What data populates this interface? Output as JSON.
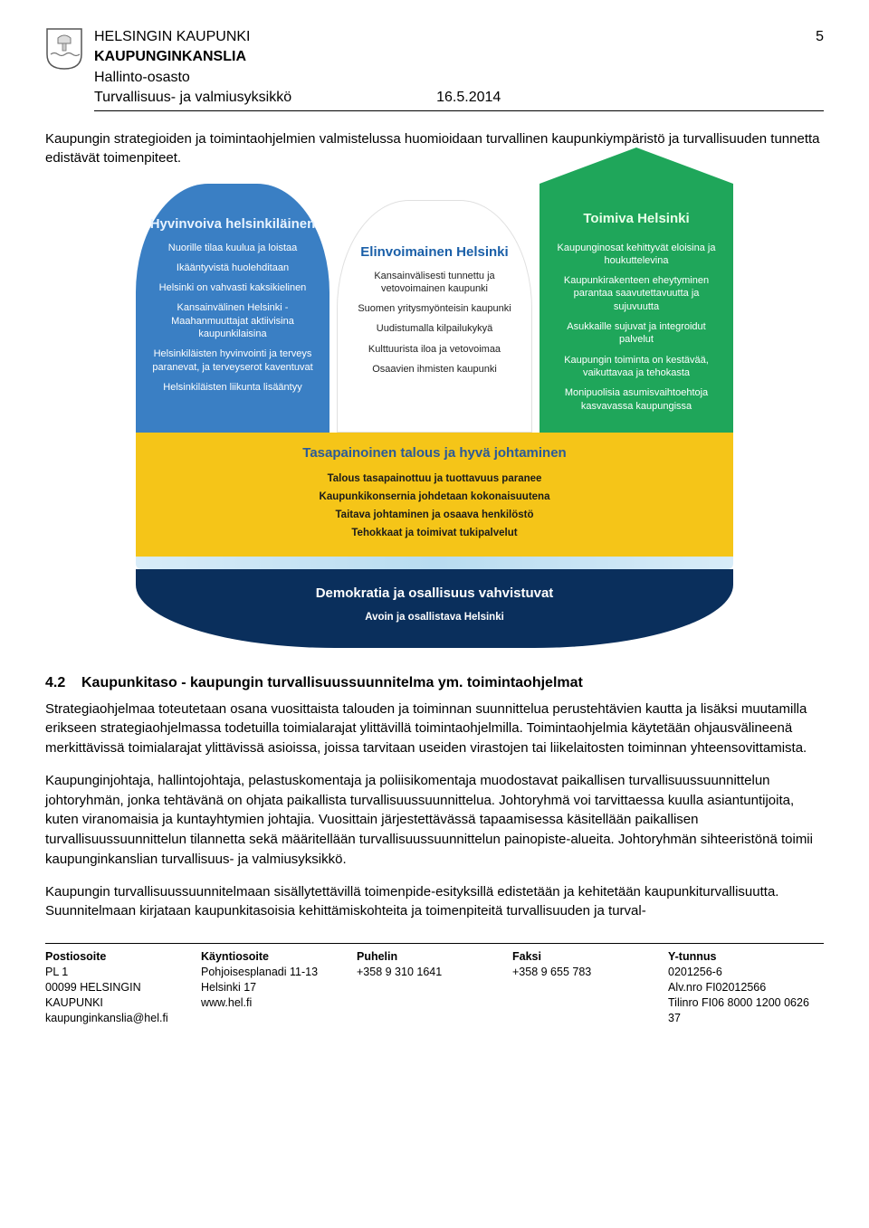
{
  "page_number": "5",
  "header": {
    "org1": "HELSINGIN KAUPUNKI",
    "org2": "KAUPUNGINKANSLIA",
    "dept": "Hallinto-osasto",
    "unit": "Turvallisuus- ja valmiusyksikkö",
    "date": "16.5.2014"
  },
  "intro": "Kaupungin strategioiden ja toimintaohjelmien valmistelussa huomioidaan turvallinen kaupunkiympäristö ja turvallisuuden tunnetta edistävät toimenpiteet.",
  "infographic": {
    "type": "infographic",
    "layout": "ship-three-pillars-over-deck-and-hull",
    "background_color": "#ffffff",
    "pillars": [
      {
        "id": "hyvinvoiva",
        "title": "Hyvinvoiva helsinkiläinen",
        "bg_color": "#3a7fc4",
        "text_color": "#ffffff",
        "title_color": "#e8f3ff",
        "shape": "rounded-top",
        "items": [
          "Nuorille tilaa kuulua ja loistaa",
          "Ikääntyvistä huolehditaan",
          "Helsinki on vahvasti kaksikielinen",
          "Kansainvälinen Helsinki - Maahanmuuttajat aktiivisina kaupunkilaisina",
          "Helsinkiläisten hyvinvointi ja terveys paranevat, ja terveyserot kaventuvat",
          "Helsinkiläisten liikunta lisääntyy"
        ]
      },
      {
        "id": "elinvoimainen",
        "title": "Elinvoimainen Helsinki",
        "bg_color": "#ffffff",
        "text_color": "#222222",
        "title_color": "#1a5fa8",
        "shape": "rounded-top",
        "items": [
          "Kansainvälisesti tunnettu ja vetovoimainen kaupunki",
          "Suomen yritysmyönteisin kaupunki",
          "Uudistumalla kilpailukykyä",
          "Kulttuurista iloa ja vetovoimaa",
          "Osaavien ihmisten kaupunki"
        ]
      },
      {
        "id": "toimiva",
        "title": "Toimiva Helsinki",
        "bg_color": "#1fa65a",
        "text_color": "#ffffff",
        "title_color": "#e8ffe8",
        "shape": "house-roof",
        "items": [
          "Kaupunginosat kehittyvät eloisina ja houkuttelevina",
          "Kaupunkirakenteen eheytyminen parantaa saavutettavuutta ja sujuvuutta",
          "Asukkaille sujuvat ja integroidut palvelut",
          "Kaupungin toiminta on kestävää, vaikuttavaa ja tehokasta",
          "Monipuolisia asumisvaihtoehtoja kasvavassa kaupungissa"
        ]
      }
    ],
    "deck": {
      "bg_color": "#f5c518",
      "title_color": "#2a5a9a",
      "text_color": "#1a1a1a",
      "title": "Tasapainoinen talous ja hyvä johtaminen",
      "items": [
        "Talous tasapainottuu ja tuottavuus paranee",
        "Kaupunkikonsernia johdetaan kokonaisuutena",
        "Taitava johtaminen ja osaava henkilöstö",
        "Tehokkaat ja toimivat tukipalvelut"
      ]
    },
    "hull": {
      "bg_color": "#0a2f5c",
      "text_color": "#ffffff",
      "title": "Demokratia ja osallisuus vahvistuvat",
      "subtitle": "Avoin ja osallistava Helsinki"
    },
    "fonts": {
      "title_pt": 15,
      "body_pt": 11
    }
  },
  "section": {
    "number": "4.2",
    "title": "Kaupunkitaso - kaupungin turvallisuussuunnitelma ym. toimintaohjelmat"
  },
  "paragraphs": [
    "Strategiaohjelmaa toteutetaan osana vuosittaista talouden ja toiminnan suunnittelua perustehtävien kautta ja lisäksi muutamilla erikseen strategiaohjelmassa todetuilla toimialarajat ylittävillä toimintaohjelmilla. Toimintaohjelmia käytetään ohjausvälineenä merkittävissä toimialarajat ylittävissä asioissa, joissa tarvitaan useiden virastojen tai liikelaitosten toiminnan yhteensovittamista.",
    "Kaupunginjohtaja, hallintojohtaja, pelastuskomentaja ja poliisikomentaja muodostavat paikallisen turvallisuussuunnittelun johtoryhmän, jonka tehtävänä on ohjata paikallista turvallisuussuunnittelua. Johtoryhmä voi tarvittaessa kuulla asiantuntijoita, kuten viranomaisia ja kuntayhtymien johtajia. Vuosittain järjestettävässä tapaamisessa käsitellään paikallisen turvallisuussuunnittelun tilannetta sekä määritellään turvallisuussuunnittelun painopiste-alueita. Johtoryhmän sihteeristönä toimii kaupunginkanslian turvallisuus- ja valmiusyksikkö.",
    "Kaupungin turvallisuussuunnitelmaan sisällytettävillä toimenpide-esityksillä edistetään ja kehitetään kaupunkiturvallisuutta. Suunnitelmaan kirjataan kaupunkitasoisia kehittämiskohteita ja toimenpiteitä turvallisuuden ja turval-"
  ],
  "footer": {
    "cols": [
      {
        "h": "Postiosoite",
        "lines": [
          "PL 1",
          "00099 HELSINGIN KAUPUNKI",
          "kaupunginkanslia@hel.fi"
        ]
      },
      {
        "h": "Käyntiosoite",
        "lines": [
          "Pohjoisesplanadi 11-13",
          "Helsinki 17",
          "www.hel.fi"
        ]
      },
      {
        "h": "Puhelin",
        "lines": [
          "+358 9 310 1641"
        ]
      },
      {
        "h": "Faksi",
        "lines": [
          "+358 9 655 783"
        ]
      },
      {
        "h": "Y-tunnus",
        "lines": [
          "0201256-6",
          "Alv.nro FI02012566",
          "Tilinro FI06 8000 1200 0626 37"
        ]
      }
    ]
  }
}
